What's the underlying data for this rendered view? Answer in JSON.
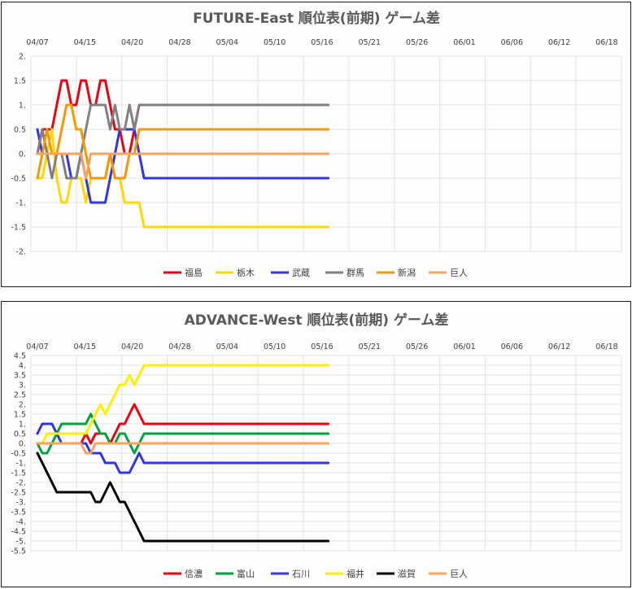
{
  "chart_data": [
    {
      "type": "line",
      "title": "FUTURE-East 順位表(前期) ゲーム差",
      "x_tick_labels": [
        "04/07",
        "04/15",
        "04/20",
        "04/28",
        "05/04",
        "05/10",
        "05/16",
        "05/21",
        "05/26",
        "06/01",
        "06/06",
        "06/12",
        "06/18"
      ],
      "y_tick_labels": [
        "2.",
        "1.5",
        "1.",
        "0.5",
        "0.",
        "-0.5",
        "-1.",
        "-1.5",
        "-2."
      ],
      "ylim": [
        -2,
        2
      ],
      "grid": true,
      "legend_position": "bottom",
      "series": [
        {
          "name": "福島",
          "color": "#e60012",
          "x": [
            0,
            1,
            2,
            3,
            4,
            5,
            6,
            7,
            8,
            9,
            10,
            11,
            12,
            13,
            14,
            15,
            16,
            17,
            18,
            19,
            20,
            21,
            22,
            60
          ],
          "values": [
            0,
            0.5,
            0.5,
            0.5,
            1,
            1.5,
            1.5,
            1,
            1,
            1.5,
            1.5,
            1,
            1,
            1.5,
            1.5,
            1,
            0.5,
            0.5,
            0,
            0,
            0.5,
            1,
            1,
            1
          ]
        },
        {
          "name": "栃木",
          "color": "#ffd700",
          "x": [
            0,
            1,
            2,
            3,
            4,
            5,
            6,
            7,
            8,
            9,
            10,
            11,
            12,
            13,
            14,
            15,
            16,
            17,
            18,
            19,
            20,
            21,
            22,
            60
          ],
          "values": [
            -0.5,
            -0.5,
            0,
            0.5,
            -0.5,
            -1,
            -1,
            -0.5,
            -0.5,
            -0.5,
            -1,
            -0.5,
            -0.5,
            -0.5,
            -0.5,
            0,
            -0.5,
            -0.5,
            -1,
            -1,
            -1,
            -1,
            -1.5,
            -1.5
          ]
        },
        {
          "name": "武蔵",
          "color": "#3333e6",
          "x": [
            0,
            1,
            2,
            3,
            4,
            5,
            6,
            7,
            8,
            9,
            10,
            11,
            12,
            13,
            14,
            15,
            16,
            17,
            18,
            19,
            20,
            21,
            22,
            60
          ],
          "values": [
            0.5,
            0,
            0,
            0,
            0,
            0,
            0,
            -0.5,
            -0.5,
            0,
            -0.5,
            -1,
            -1,
            -1,
            -1,
            -0.5,
            0,
            0.5,
            0.5,
            0.5,
            0.5,
            0,
            -0.5,
            -0.5
          ]
        },
        {
          "name": "群馬",
          "color": "#808080",
          "x": [
            0,
            1,
            2,
            3,
            4,
            5,
            6,
            7,
            8,
            9,
            10,
            11,
            12,
            13,
            14,
            15,
            16,
            17,
            18,
            19,
            20,
            21,
            22,
            60
          ],
          "values": [
            0,
            0.5,
            0,
            -0.5,
            0,
            0,
            -0.5,
            -0.5,
            -0.5,
            0,
            0.5,
            1,
            1,
            1,
            1,
            0.5,
            1,
            0.5,
            0.5,
            1,
            0.5,
            1,
            1,
            1
          ]
        },
        {
          "name": "新潟",
          "color": "#f39800",
          "x": [
            0,
            1,
            2,
            3,
            4,
            5,
            6,
            7,
            8,
            9,
            10,
            11,
            12,
            13,
            14,
            15,
            16,
            17,
            18,
            19,
            20,
            21,
            22,
            60
          ],
          "values": [
            -0.5,
            0,
            0.5,
            0,
            0,
            0.5,
            1,
            1,
            0.5,
            0.5,
            0,
            -0.5,
            -0.5,
            -0.5,
            -0.5,
            0,
            -0.5,
            -0.5,
            -0.5,
            0,
            0,
            0.5,
            0.5,
            0.5
          ]
        },
        {
          "name": "巨人",
          "color": "#f4a460",
          "x": [
            0,
            9,
            10,
            11,
            60
          ],
          "values": [
            0,
            0,
            -0.5,
            0,
            0
          ]
        }
      ]
    },
    {
      "type": "line",
      "title": "ADVANCE-West 順位表(前期) ゲーム差",
      "x_tick_labels": [
        "04/07",
        "04/15",
        "04/20",
        "04/28",
        "05/04",
        "05/10",
        "05/16",
        "05/21",
        "05/26",
        "06/01",
        "06/06",
        "06/12",
        "06/18"
      ],
      "y_tick_labels": [
        "4.5",
        "4.",
        "3.5",
        "3.",
        "2.5",
        "2.",
        "1.5",
        "1.",
        "0.5",
        "0.",
        "-0.5",
        "-1.",
        "-1.5",
        "-2.",
        "-2.5",
        "-3.",
        "-3.5",
        "-4.",
        "-4.5",
        "-5.",
        "-5.5"
      ],
      "ylim": [
        -5.5,
        4.5
      ],
      "grid": true,
      "legend_position": "bottom",
      "series": [
        {
          "name": "信濃",
          "color": "#e60012",
          "x": [
            0,
            9,
            10,
            11,
            12,
            13,
            14,
            15,
            16,
            17,
            18,
            19,
            20,
            21,
            22,
            60
          ],
          "values": [
            0,
            0,
            0.5,
            0,
            0.5,
            0.5,
            0.5,
            0,
            0.5,
            1,
            1,
            1.5,
            2,
            1.5,
            1,
            1
          ]
        },
        {
          "name": "富山",
          "color": "#00a040",
          "x": [
            0,
            1,
            2,
            3,
            4,
            5,
            6,
            7,
            8,
            9,
            10,
            11,
            12,
            13,
            14,
            15,
            16,
            17,
            18,
            19,
            20,
            21,
            22,
            60
          ],
          "values": [
            0,
            -0.5,
            -0.5,
            0,
            0.5,
            1,
            1,
            1,
            1,
            1,
            1,
            1.5,
            1,
            0.5,
            0.5,
            0,
            0,
            0.5,
            0.5,
            0,
            -0.5,
            0,
            0.5,
            0.5
          ]
        },
        {
          "name": "石川",
          "color": "#3333e6",
          "x": [
            0,
            1,
            2,
            3,
            4,
            5,
            6,
            7,
            8,
            9,
            10,
            11,
            12,
            13,
            14,
            15,
            16,
            17,
            18,
            19,
            20,
            21,
            22,
            60
          ],
          "values": [
            0.5,
            1,
            1,
            1,
            0.5,
            0,
            0,
            0,
            0,
            0,
            0,
            -0.5,
            -0.5,
            -0.5,
            -1,
            -1,
            -1,
            -1.5,
            -1.5,
            -1.5,
            -1,
            -0.5,
            -1,
            -1
          ]
        },
        {
          "name": "福井",
          "color": "#ffee00",
          "x": [
            0,
            1,
            2,
            3,
            4,
            5,
            6,
            7,
            8,
            9,
            10,
            11,
            12,
            13,
            14,
            15,
            16,
            17,
            18,
            19,
            20,
            21,
            22,
            60
          ],
          "values": [
            0,
            0,
            0.5,
            0.5,
            0.5,
            0.5,
            0.5,
            0.5,
            0.5,
            0.5,
            0.5,
            1,
            1.5,
            2,
            1.5,
            2,
            2.5,
            3,
            3,
            3.5,
            3,
            3.5,
            4,
            4
          ]
        },
        {
          "name": "滋賀",
          "color": "#000000",
          "x": [
            0,
            1,
            2,
            3,
            4,
            5,
            6,
            7,
            8,
            9,
            10,
            11,
            12,
            13,
            14,
            15,
            16,
            17,
            18,
            19,
            20,
            21,
            22,
            60
          ],
          "values": [
            -0.5,
            -1,
            -1.5,
            -2,
            -2.5,
            -2.5,
            -2.5,
            -2.5,
            -2.5,
            -2.5,
            -2.5,
            -2.5,
            -3,
            -3,
            -2.5,
            -2,
            -2.5,
            -3,
            -3,
            -3.5,
            -4,
            -4.5,
            -5,
            -5
          ]
        },
        {
          "name": "巨人",
          "color": "#f4a460",
          "x": [
            0,
            9,
            10,
            11,
            12,
            60
          ],
          "values": [
            0,
            0,
            -0.5,
            -0.5,
            0,
            0
          ]
        }
      ]
    }
  ]
}
